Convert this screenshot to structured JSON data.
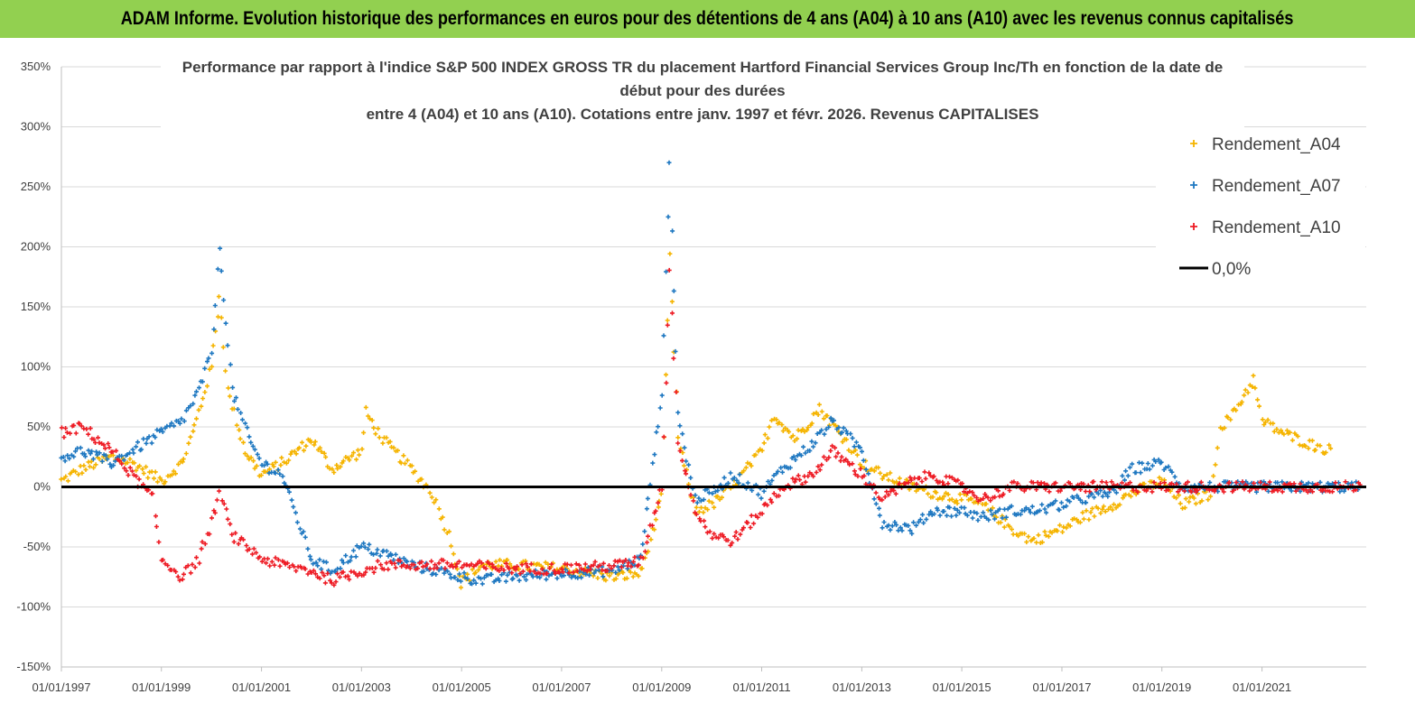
{
  "banner": {
    "title": "ADAM Informe. Evolution historique des performances en euros pour des détentions de 4 ans (A04) à 10 ans (A10) avec les revenus connus capitalisés"
  },
  "chart_data": {
    "type": "scatter",
    "title_lines": [
      "Performance par rapport à l'indice S&P 500 INDEX GROSS TR  du placement Hartford Financial Services Group Inc/Th en fonction de la date de",
      "début pour des durées",
      "entre 4 (A04) et 10 ans (A10). Cotations entre janv. 1997 et févr. 2026. Revenus CAPITALISES"
    ],
    "xlabel": "",
    "ylabel": "",
    "x_range": [
      "1997-01-01",
      "2023-02-01"
    ],
    "ylim": [
      -150,
      350
    ],
    "y_ticks": [
      -150,
      -100,
      -50,
      0,
      50,
      100,
      150,
      200,
      250,
      300,
      350
    ],
    "y_tick_labels": [
      "-150%",
      "-100%",
      "-50%",
      "0%",
      "50%",
      "100%",
      "150%",
      "200%",
      "250%",
      "300%",
      "350%"
    ],
    "x_tick_dates": [
      "1997-01-01",
      "1999-01-01",
      "2001-01-01",
      "2003-01-01",
      "2005-01-01",
      "2007-01-01",
      "2009-01-01",
      "2011-01-01",
      "2013-01-01",
      "2015-01-01",
      "2017-01-01",
      "2019-01-01",
      "2021-01-01"
    ],
    "x_tick_labels": [
      "01/01/1997",
      "01/01/1999",
      "01/01/2001",
      "01/01/2003",
      "01/01/2005",
      "01/01/2007",
      "01/01/2009",
      "01/01/2011",
      "01/01/2013",
      "01/01/2015",
      "01/01/2017",
      "01/01/2019",
      "01/01/2021"
    ],
    "grid": "horizontal",
    "legend_position": "top-right",
    "zero_line": {
      "name": "0,0%",
      "value": 0,
      "color": "#000000"
    },
    "series": [
      {
        "name": "Rendement_A04",
        "color": "#f5b400",
        "points": [
          [
            "1997-01-01",
            5
          ],
          [
            "1997-06-01",
            15
          ],
          [
            "1998-01-01",
            25
          ],
          [
            "1998-06-01",
            20
          ],
          [
            "1999-01-01",
            5
          ],
          [
            "1999-06-01",
            20
          ],
          [
            "1999-09-01",
            50
          ],
          [
            "2000-01-01",
            100
          ],
          [
            "2000-03-01",
            160
          ],
          [
            "2000-05-01",
            80
          ],
          [
            "2000-09-01",
            30
          ],
          [
            "2001-01-01",
            10
          ],
          [
            "2001-06-01",
            20
          ],
          [
            "2002-01-01",
            40
          ],
          [
            "2002-06-01",
            15
          ],
          [
            "2003-01-01",
            30
          ],
          [
            "2003-02-01",
            62
          ],
          [
            "2003-06-01",
            40
          ],
          [
            "2004-01-01",
            15
          ],
          [
            "2004-06-01",
            -5
          ],
          [
            "2004-10-01",
            -40
          ],
          [
            "2005-01-01",
            -80
          ],
          [
            "2005-06-01",
            -65
          ],
          [
            "2006-01-01",
            -65
          ],
          [
            "2007-01-01",
            -68
          ],
          [
            "2008-01-01",
            -75
          ],
          [
            "2008-08-01",
            -72
          ],
          [
            "2009-01-01",
            -10
          ],
          [
            "2009-03-01",
            190
          ],
          [
            "2009-05-01",
            40
          ],
          [
            "2009-09-01",
            -20
          ],
          [
            "2010-01-01",
            -15
          ],
          [
            "2010-06-01",
            0
          ],
          [
            "2011-01-01",
            30
          ],
          [
            "2011-04-01",
            60
          ],
          [
            "2011-09-01",
            40
          ],
          [
            "2012-03-01",
            65
          ],
          [
            "2012-09-01",
            40
          ],
          [
            "2013-01-01",
            20
          ],
          [
            "2013-06-01",
            10
          ],
          [
            "2014-01-01",
            0
          ],
          [
            "2014-06-01",
            -5
          ],
          [
            "2015-01-01",
            -10
          ],
          [
            "2015-06-01",
            -15
          ],
          [
            "2016-01-01",
            -35
          ],
          [
            "2016-06-01",
            -45
          ],
          [
            "2017-01-01",
            -35
          ],
          [
            "2017-06-01",
            -25
          ],
          [
            "2018-01-01",
            -15
          ],
          [
            "2018-06-01",
            -5
          ],
          [
            "2019-01-01",
            5
          ],
          [
            "2019-06-01",
            -15
          ],
          [
            "2020-01-01",
            -5
          ],
          [
            "2020-03-01",
            50
          ],
          [
            "2020-06-01",
            60
          ],
          [
            "2020-11-01",
            90
          ],
          [
            "2021-01-01",
            55
          ],
          [
            "2021-06-01",
            45
          ],
          [
            "2022-01-01",
            35
          ],
          [
            "2022-06-01",
            30
          ]
        ]
      },
      {
        "name": "Rendement_A07",
        "color": "#1f78c1",
        "points": [
          [
            "1997-01-01",
            25
          ],
          [
            "1997-06-01",
            30
          ],
          [
            "1998-01-01",
            20
          ],
          [
            "1998-06-01",
            30
          ],
          [
            "1999-01-01",
            45
          ],
          [
            "1999-06-01",
            55
          ],
          [
            "1999-10-01",
            80
          ],
          [
            "2000-01-01",
            110
          ],
          [
            "2000-03-01",
            200
          ],
          [
            "2000-06-01",
            80
          ],
          [
            "2000-10-01",
            40
          ],
          [
            "2001-01-01",
            20
          ],
          [
            "2001-06-01",
            10
          ],
          [
            "2002-01-01",
            -60
          ],
          [
            "2002-06-01",
            -70
          ],
          [
            "2003-01-01",
            -50
          ],
          [
            "2003-06-01",
            -55
          ],
          [
            "2004-01-01",
            -65
          ],
          [
            "2005-01-01",
            -75
          ],
          [
            "2005-06-01",
            -78
          ],
          [
            "2006-01-01",
            -75
          ],
          [
            "2007-01-01",
            -72
          ],
          [
            "2008-01-01",
            -70
          ],
          [
            "2008-08-01",
            -60
          ],
          [
            "2009-01-01",
            80
          ],
          [
            "2009-03-01",
            270
          ],
          [
            "2009-05-01",
            60
          ],
          [
            "2009-09-01",
            -10
          ],
          [
            "2010-01-01",
            -5
          ],
          [
            "2010-06-01",
            10
          ],
          [
            "2011-01-01",
            -5
          ],
          [
            "2011-06-01",
            15
          ],
          [
            "2012-01-01",
            35
          ],
          [
            "2012-06-01",
            55
          ],
          [
            "2013-01-01",
            30
          ],
          [
            "2013-06-01",
            -30
          ],
          [
            "2014-01-01",
            -35
          ],
          [
            "2014-06-01",
            -20
          ],
          [
            "2015-01-01",
            -20
          ],
          [
            "2015-06-01",
            -25
          ],
          [
            "2016-01-01",
            -20
          ],
          [
            "2016-06-01",
            -20
          ],
          [
            "2017-01-01",
            -15
          ],
          [
            "2017-06-01",
            -10
          ],
          [
            "2018-01-01",
            -5
          ],
          [
            "2018-06-01",
            15
          ],
          [
            "2019-01-01",
            20
          ],
          [
            "2019-06-01",
            0
          ],
          [
            "2020-01-01",
            0
          ],
          [
            "2021-01-01",
            0
          ],
          [
            "2022-01-01",
            0
          ],
          [
            "2023-01-01",
            0
          ]
        ]
      },
      {
        "name": "Rendement_A10",
        "color": "#ee1c25",
        "points": [
          [
            "1997-01-01",
            45
          ],
          [
            "1997-06-01",
            50
          ],
          [
            "1998-01-01",
            30
          ],
          [
            "1998-06-01",
            10
          ],
          [
            "1998-11-01",
            -10
          ],
          [
            "1999-01-01",
            -60
          ],
          [
            "1999-06-01",
            -75
          ],
          [
            "1999-10-01",
            -60
          ],
          [
            "2000-01-01",
            -30
          ],
          [
            "2000-03-01",
            -5
          ],
          [
            "2000-06-01",
            -40
          ],
          [
            "2001-01-01",
            -60
          ],
          [
            "2001-06-01",
            -65
          ],
          [
            "2002-01-01",
            -70
          ],
          [
            "2002-06-01",
            -78
          ],
          [
            "2003-01-01",
            -70
          ],
          [
            "2003-06-01",
            -65
          ],
          [
            "2004-01-01",
            -65
          ],
          [
            "2005-01-01",
            -65
          ],
          [
            "2006-01-01",
            -68
          ],
          [
            "2007-01-01",
            -68
          ],
          [
            "2008-01-01",
            -66
          ],
          [
            "2008-08-01",
            -62
          ],
          [
            "2009-01-01",
            0
          ],
          [
            "2009-03-01",
            180
          ],
          [
            "2009-05-01",
            40
          ],
          [
            "2009-09-01",
            -20
          ],
          [
            "2010-01-01",
            -40
          ],
          [
            "2010-06-01",
            -45
          ],
          [
            "2011-01-01",
            -20
          ],
          [
            "2011-06-01",
            0
          ],
          [
            "2012-01-01",
            10
          ],
          [
            "2012-06-01",
            30
          ],
          [
            "2013-01-01",
            10
          ],
          [
            "2013-06-01",
            -10
          ],
          [
            "2014-01-01",
            5
          ],
          [
            "2014-06-01",
            10
          ],
          [
            "2015-01-01",
            0
          ],
          [
            "2015-06-01",
            -10
          ],
          [
            "2016-01-01",
            0
          ],
          [
            "2017-01-01",
            0
          ],
          [
            "2018-01-01",
            0
          ],
          [
            "2019-01-01",
            0
          ],
          [
            "2020-01-01",
            0
          ],
          [
            "2021-01-01",
            0
          ],
          [
            "2022-01-01",
            0
          ],
          [
            "2023-01-01",
            0
          ]
        ]
      }
    ]
  }
}
